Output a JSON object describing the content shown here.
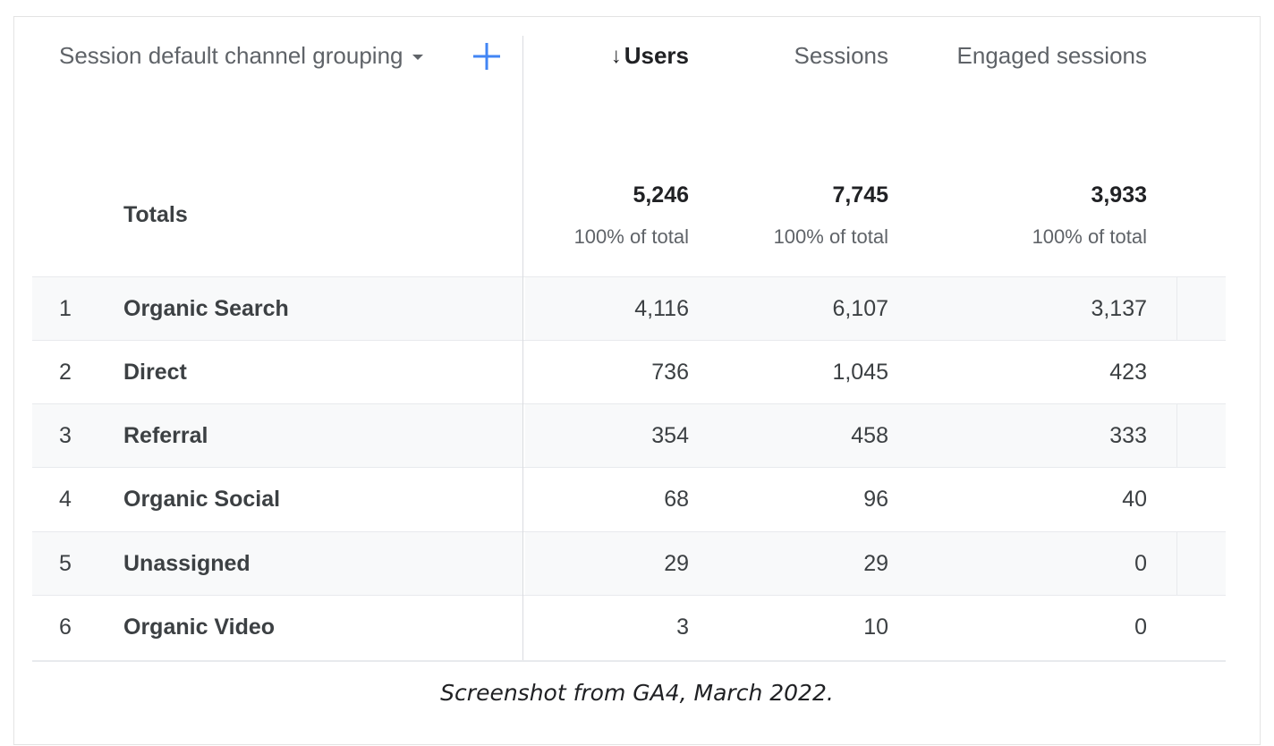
{
  "table": {
    "dimension_header": "Session default channel grouping",
    "columns": [
      {
        "label": "Users",
        "sorted": true,
        "sort_arrow": "↓"
      },
      {
        "label": "Sessions",
        "sorted": false
      },
      {
        "label": "Engaged sessions",
        "sorted": false
      }
    ],
    "totals": {
      "label": "Totals",
      "values": [
        "5,246",
        "7,745",
        "3,933"
      ],
      "percents": [
        "100% of total",
        "100% of total",
        "100% of total"
      ]
    },
    "rows": [
      {
        "rank": "1",
        "channel": "Organic Search",
        "users": "4,116",
        "sessions": "6,107",
        "engaged": "3,137"
      },
      {
        "rank": "2",
        "channel": "Direct",
        "users": "736",
        "sessions": "1,045",
        "engaged": "423"
      },
      {
        "rank": "3",
        "channel": "Referral",
        "users": "354",
        "sessions": "458",
        "engaged": "333"
      },
      {
        "rank": "4",
        "channel": "Organic Social",
        "users": "68",
        "sessions": "96",
        "engaged": "40"
      },
      {
        "rank": "5",
        "channel": "Unassigned",
        "users": "29",
        "sessions": "29",
        "engaged": "0"
      },
      {
        "rank": "6",
        "channel": "Organic Video",
        "users": "3",
        "sessions": "10",
        "engaged": "0"
      }
    ]
  },
  "caption": "Screenshot from GA4, March 2022.",
  "icons": {
    "add": "plus-icon",
    "dropdown": "caret-down-icon",
    "sort": "arrow-down-icon"
  },
  "colors": {
    "accent": "#4285f4",
    "row_shade": "#f8f9fa",
    "muted_text": "#5f6368"
  }
}
